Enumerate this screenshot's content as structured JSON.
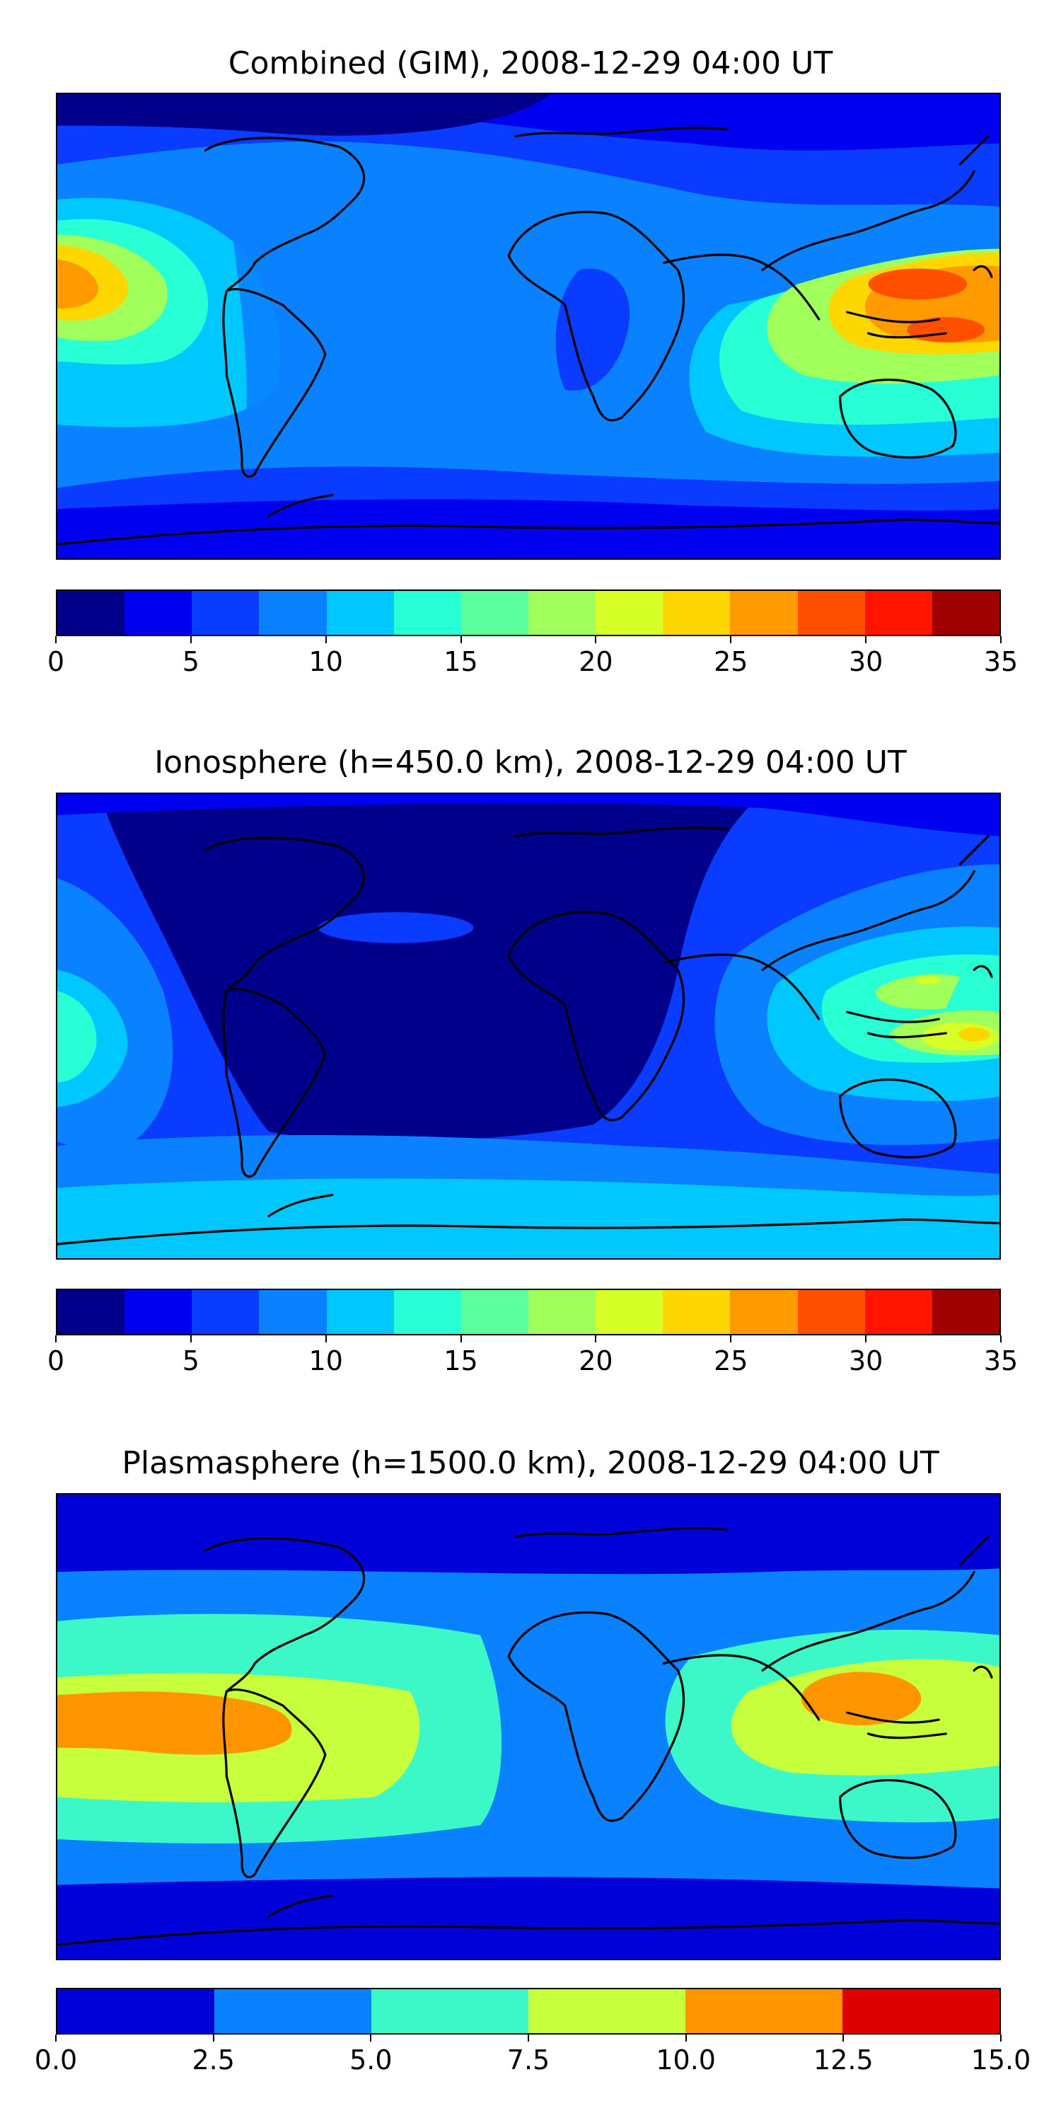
{
  "panels": [
    {
      "title": "Combined (GIM), 2008-12-29 04:00 UT",
      "colorbar": {
        "ticks": [
          "0",
          "5",
          "10",
          "15",
          "20",
          "25",
          "30",
          "35"
        ],
        "colors": [
          "#00008b",
          "#0000f0",
          "#0a3cff",
          "#0a82ff",
          "#00c8ff",
          "#28ffd4",
          "#5dff9c",
          "#a0ff5a",
          "#d6ff28",
          "#ffd700",
          "#ff9a00",
          "#ff5000",
          "#ff1400",
          "#a00000"
        ]
      }
    },
    {
      "title": "Ionosphere  (h=450.0 km), 2008-12-29 04:00 UT",
      "colorbar": {
        "ticks": [
          "0",
          "5",
          "10",
          "15",
          "20",
          "25",
          "30",
          "35"
        ],
        "colors": [
          "#00008b",
          "#0000f0",
          "#0a3cff",
          "#0a82ff",
          "#00c8ff",
          "#28ffd4",
          "#5dff9c",
          "#a0ff5a",
          "#d6ff28",
          "#ffd700",
          "#ff9a00",
          "#ff5000",
          "#ff1400",
          "#a00000"
        ]
      }
    },
    {
      "title": "Plasmasphere (h=1500.0 km), 2008-12-29 04:00 UT",
      "colorbar": {
        "ticks": [
          "0.0",
          "2.5",
          "5.0",
          "7.5",
          "10.0",
          "12.5",
          "15.0"
        ],
        "colors": [
          "#0000d8",
          "#0a82ff",
          "#3cf8c8",
          "#c8ff3c",
          "#ff9500",
          "#dc0000"
        ]
      }
    }
  ]
}
